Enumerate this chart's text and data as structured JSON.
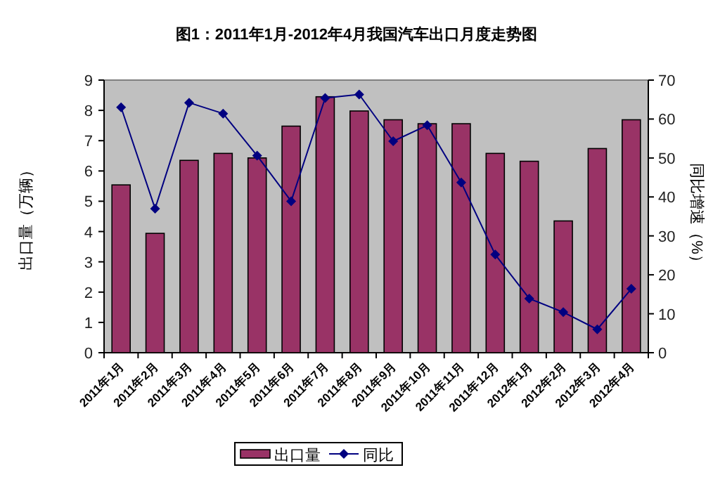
{
  "chart_data": {
    "type": "bar",
    "title": "图1：2011年1月-2012年4月我国汽车出口月度走势图",
    "ylabel": "出口量（万辆）",
    "y2label": "同比增速（%）",
    "categories": [
      "2011年1月",
      "2011年2月",
      "2011年3月",
      "2011年4月",
      "2011年5月",
      "2011年6月",
      "2011年7月",
      "2011年8月",
      "2011年9月",
      "2011年10月",
      "2011年11月",
      "2011年12月",
      "2012年1月",
      "2012年2月",
      "2012年3月",
      "2012年4月"
    ],
    "series": [
      {
        "name": "出口量",
        "color": "#993366",
        "values": [
          5.54,
          3.94,
          6.35,
          6.58,
          6.43,
          7.48,
          8.45,
          7.98,
          7.69,
          7.56,
          7.56,
          6.58,
          6.32,
          4.35,
          6.74,
          7.69
        ]
      },
      {
        "name": "同比",
        "type": "line",
        "axis": "y2",
        "color": "#000080",
        "marker": "diamond",
        "values": [
          63.0,
          37.0,
          64.2,
          61.4,
          50.6,
          38.9,
          65.4,
          66.3,
          54.3,
          58.4,
          43.7,
          25.2,
          13.9,
          10.4,
          6.0,
          16.4
        ]
      }
    ],
    "ylim": [
      0,
      9
    ],
    "yticks": [
      0,
      1,
      2,
      3,
      4,
      5,
      6,
      7,
      8,
      9
    ],
    "y2lim": [
      0,
      70
    ],
    "y2ticks": [
      0,
      10,
      20,
      30,
      40,
      50,
      60,
      70
    ],
    "grid": false,
    "legend": "bottom"
  }
}
